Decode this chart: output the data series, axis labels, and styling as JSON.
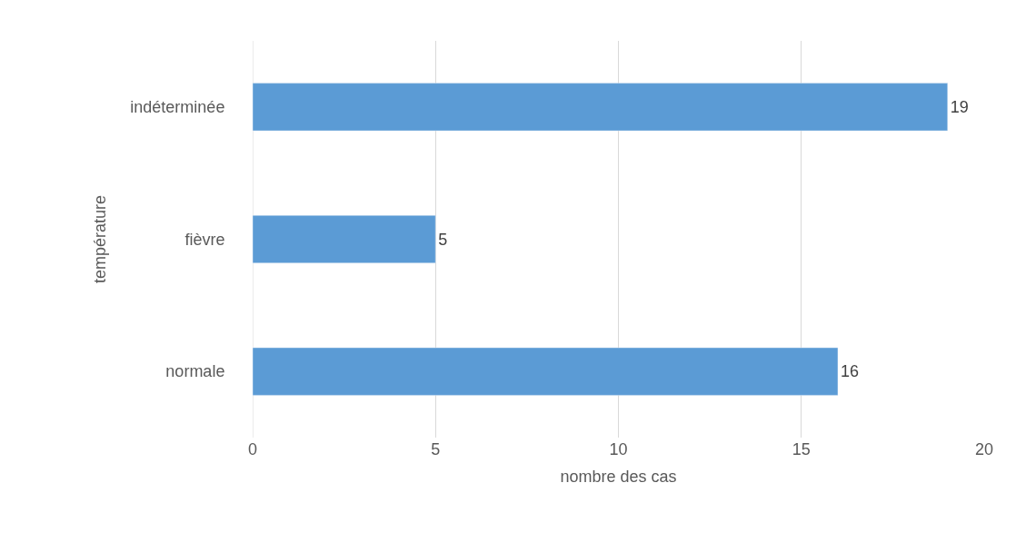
{
  "chart_data": {
    "type": "bar",
    "orientation": "horizontal",
    "xlabel": "nombre des cas",
    "ylabel": "température",
    "categories": [
      "indéterminée",
      "fièvre",
      "normale"
    ],
    "values": [
      19,
      5,
      16
    ],
    "color": "#5b9bd5",
    "xlim": [
      0,
      20
    ],
    "xticks": [
      0,
      5,
      10,
      15,
      20
    ],
    "grid": "x",
    "data_labels": true
  }
}
